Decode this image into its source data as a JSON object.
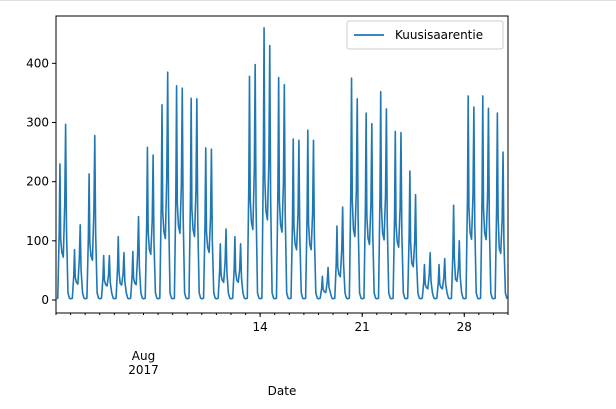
{
  "chart_data": {
    "type": "line",
    "title": "",
    "xlabel": "Date",
    "ylabel": "",
    "x_start": "2017-07-31",
    "x_end": "2017-08-31",
    "ylim": [
      -22,
      480
    ],
    "y_ticks": [
      0,
      100,
      200,
      300,
      400
    ],
    "x_ticks": [
      {
        "date": "2017-08-14",
        "label": "14"
      },
      {
        "date": "2017-08-21",
        "label": "21"
      },
      {
        "date": "2017-08-28",
        "label": "28"
      }
    ],
    "x_major_label": {
      "date": "2017-08-06",
      "line1": "Aug",
      "line2": "2017"
    },
    "legend": {
      "placement": "upper right",
      "entries": [
        "Kuusisaarentie"
      ]
    },
    "grid": false,
    "series": [
      {
        "name": "Kuusisaarentie",
        "color": "#1f77b4",
        "daily_peaks": [
          {
            "date": "2017-07-31",
            "am": 230,
            "pm": 297
          },
          {
            "date": "2017-08-01",
            "am": 85,
            "pm": 127
          },
          {
            "date": "2017-08-02",
            "am": 213,
            "pm": 278
          },
          {
            "date": "2017-08-03",
            "am": 75,
            "pm": 75
          },
          {
            "date": "2017-08-04",
            "am": 107,
            "pm": 80
          },
          {
            "date": "2017-08-05",
            "am": 82,
            "pm": 141
          },
          {
            "date": "2017-08-06",
            "am": 258,
            "pm": 245
          },
          {
            "date": "2017-08-07",
            "am": 330,
            "pm": 385
          },
          {
            "date": "2017-08-08",
            "am": 362,
            "pm": 358
          },
          {
            "date": "2017-08-09",
            "am": 341,
            "pm": 340
          },
          {
            "date": "2017-08-10",
            "am": 257,
            "pm": 255
          },
          {
            "date": "2017-08-11",
            "am": 95,
            "pm": 120
          },
          {
            "date": "2017-08-12",
            "am": 107,
            "pm": 95
          },
          {
            "date": "2017-08-13",
            "am": 378,
            "pm": 398
          },
          {
            "date": "2017-08-14",
            "am": 460,
            "pm": 430
          },
          {
            "date": "2017-08-15",
            "am": 376,
            "pm": 364
          },
          {
            "date": "2017-08-16",
            "am": 272,
            "pm": 270
          },
          {
            "date": "2017-08-17",
            "am": 287,
            "pm": 270
          },
          {
            "date": "2017-08-18",
            "am": 40,
            "pm": 55
          },
          {
            "date": "2017-08-19",
            "am": 125,
            "pm": 157
          },
          {
            "date": "2017-08-20",
            "am": 375,
            "pm": 340
          },
          {
            "date": "2017-08-21",
            "am": 316,
            "pm": 298
          },
          {
            "date": "2017-08-22",
            "am": 352,
            "pm": 323
          },
          {
            "date": "2017-08-23",
            "am": 285,
            "pm": 283
          },
          {
            "date": "2017-08-24",
            "am": 218,
            "pm": 178
          },
          {
            "date": "2017-08-25",
            "am": 60,
            "pm": 80
          },
          {
            "date": "2017-08-26",
            "am": 60,
            "pm": 70
          },
          {
            "date": "2017-08-27",
            "am": 160,
            "pm": 100
          },
          {
            "date": "2017-08-28",
            "am": 345,
            "pm": 326
          },
          {
            "date": "2017-08-29",
            "am": 345,
            "pm": 324
          },
          {
            "date": "2017-08-30",
            "am": 316,
            "pm": 250
          }
        ]
      }
    ]
  }
}
